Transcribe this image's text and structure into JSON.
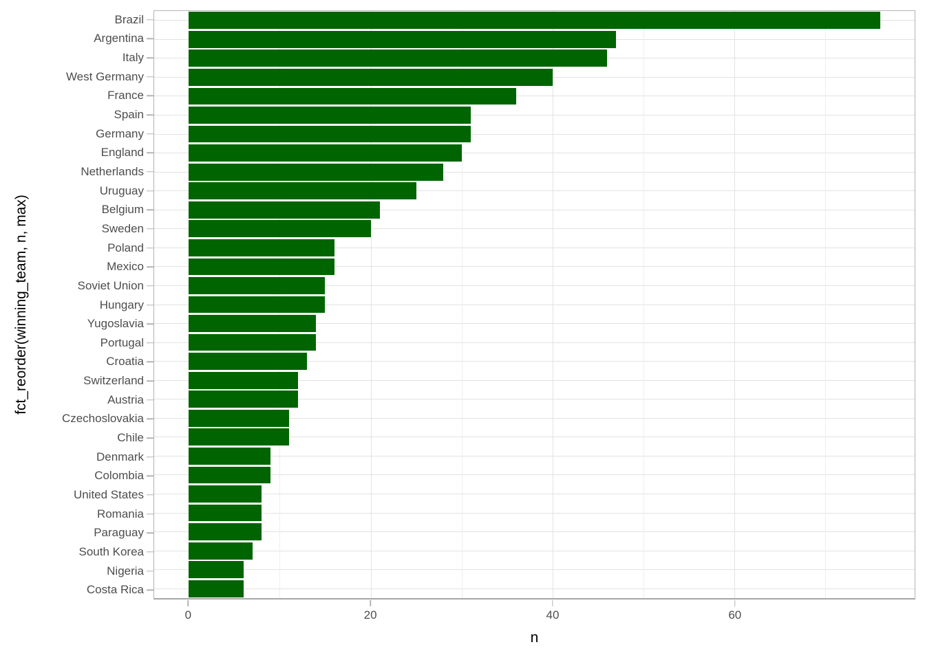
{
  "chart_data": {
    "type": "bar",
    "orientation": "horizontal",
    "title": "",
    "xlabel": "n",
    "ylabel": "fct_reorder(winning_team, n, max)",
    "categories": [
      "Brazil",
      "Argentina",
      "Italy",
      "West Germany",
      "France",
      "Spain",
      "Germany",
      "England",
      "Netherlands",
      "Uruguay",
      "Belgium",
      "Sweden",
      "Poland",
      "Mexico",
      "Soviet Union",
      "Hungary",
      "Yugoslavia",
      "Portugal",
      "Croatia",
      "Switzerland",
      "Austria",
      "Czechoslovakia",
      "Chile",
      "Denmark",
      "Colombia",
      "United States",
      "Romania",
      "Paraguay",
      "South Korea",
      "Nigeria",
      "Costa Rica"
    ],
    "values": [
      76,
      47,
      46,
      40,
      36,
      31,
      31,
      30,
      28,
      25,
      21,
      20,
      16,
      16,
      15,
      15,
      14,
      14,
      13,
      12,
      12,
      11,
      11,
      9,
      9,
      8,
      8,
      8,
      7,
      6,
      6
    ],
    "x_major_ticks": [
      0,
      20,
      40,
      60
    ],
    "x_minor_ticks": [
      10,
      30,
      50,
      70
    ],
    "xlim": [
      -3.8,
      79.8
    ],
    "bar_width_fraction": 0.9,
    "grid": "on",
    "legend": "none",
    "colors": {
      "bar": "#006400",
      "axis_text": "#4d4d4d",
      "axis_title": "#000000",
      "grid_major": "#e2e2e2",
      "grid_minor": "#eeeeee",
      "panel_border": "#b3b3b3",
      "tick_mark": "#b3b3b3",
      "background": "#ffffff"
    }
  }
}
